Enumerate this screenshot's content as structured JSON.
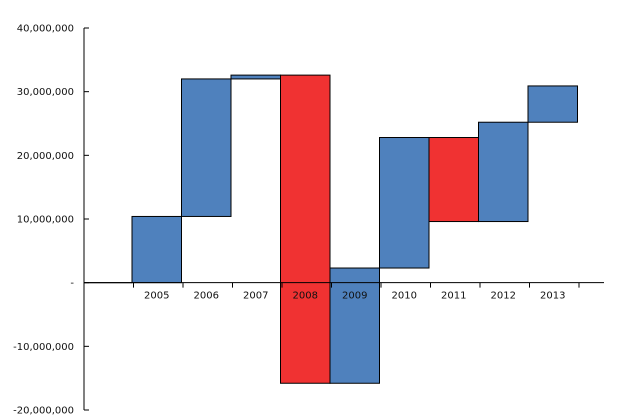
{
  "chart_data": {
    "type": "bar",
    "subtype": "waterfall",
    "title": "",
    "xlabel": "",
    "ylabel": "",
    "ylim": [
      -20000000,
      40000000
    ],
    "y_ticks": [
      -20000000,
      -10000000,
      0,
      10000000,
      20000000,
      30000000,
      40000000
    ],
    "y_tick_labels": [
      "-20,000,000",
      "-10,000,000",
      "-",
      "10,000,000",
      "20,000,000",
      "30,000,000",
      "40,000,000"
    ],
    "categories": [
      "2005",
      "2006",
      "2007",
      "2008",
      "2009",
      "2010",
      "2011",
      "2012",
      "2013"
    ],
    "bars": [
      {
        "category": "2005",
        "start": 0,
        "end": 10400000,
        "direction": "increase"
      },
      {
        "category": "2006",
        "start": 10400000,
        "end": 32000000,
        "direction": "increase"
      },
      {
        "category": "2007",
        "start": 32000000,
        "end": 32600000,
        "direction": "increase"
      },
      {
        "category": "2008",
        "start": 32600000,
        "end": -15800000,
        "direction": "decrease"
      },
      {
        "category": "2009",
        "start": -15800000,
        "end": 2300000,
        "direction": "increase"
      },
      {
        "category": "2010",
        "start": 2300000,
        "end": 22800000,
        "direction": "increase"
      },
      {
        "category": "2011",
        "start": 22800000,
        "end": 9600000,
        "direction": "decrease"
      },
      {
        "category": "2012",
        "start": 9600000,
        "end": 25200000,
        "direction": "increase"
      },
      {
        "category": "2013",
        "start": 25200000,
        "end": 30900000,
        "direction": "increase"
      }
    ],
    "colors": {
      "increase": "#4f81bd",
      "decrease": "#f03232",
      "axis": "#000000",
      "bar_border": "#000000"
    },
    "grid": false,
    "legend": "none"
  }
}
